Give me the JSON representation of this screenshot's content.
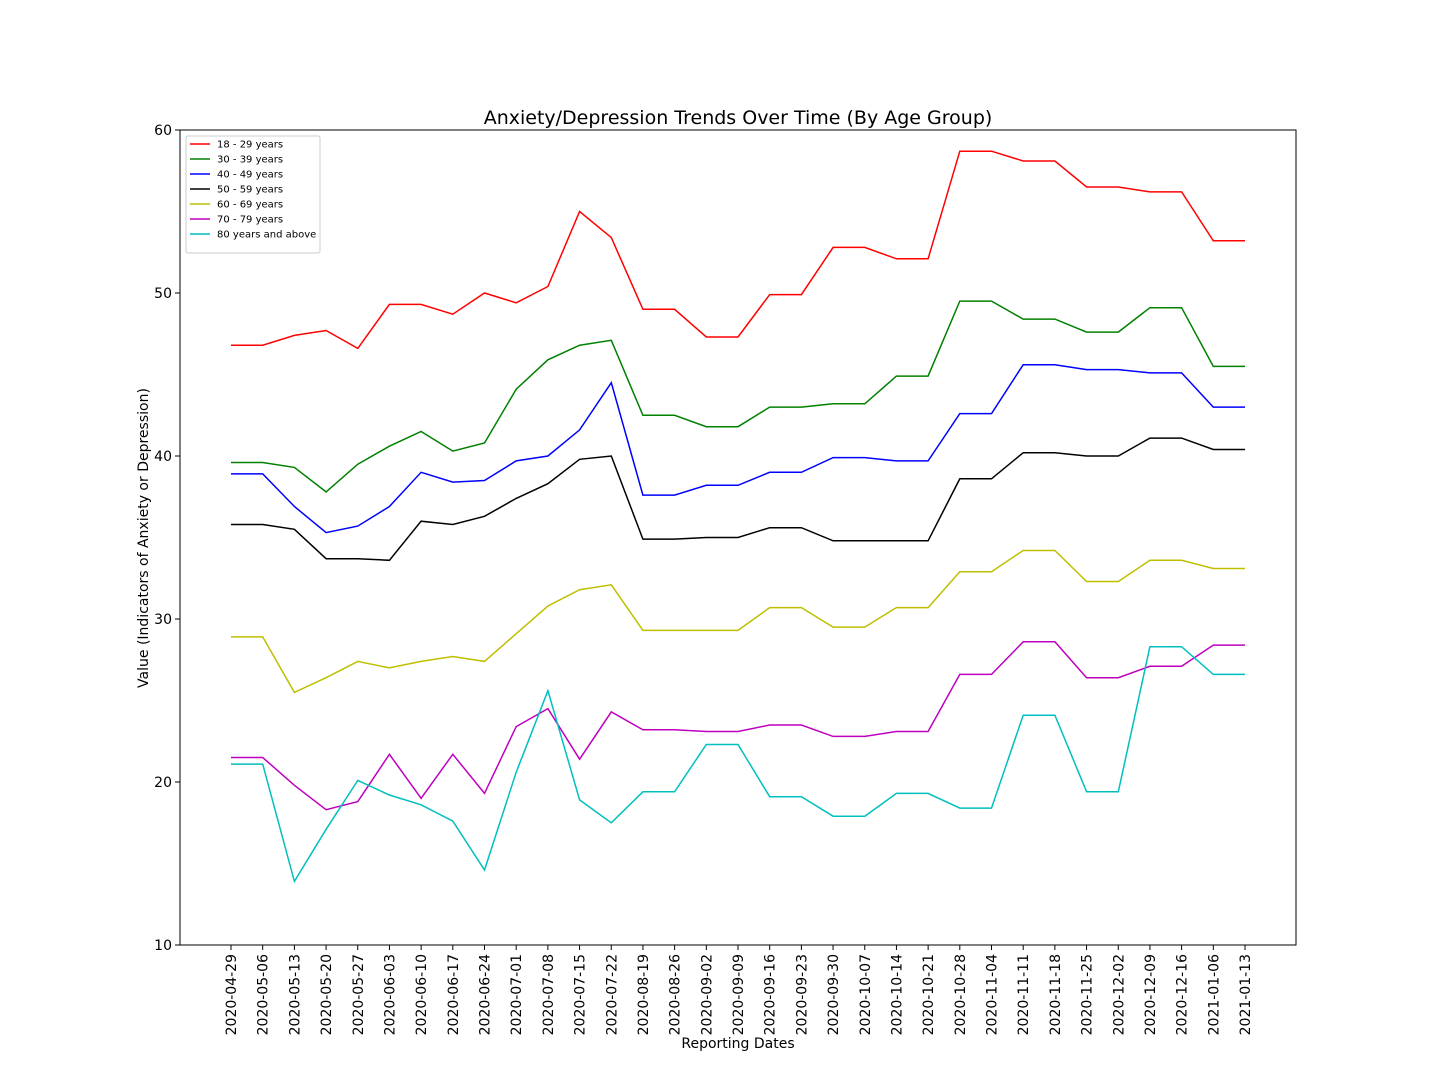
{
  "chart_data": {
    "type": "line",
    "title": "Anxiety/Depression Trends Over Time (By Age Group)",
    "xlabel": "Reporting Dates",
    "ylabel": "Value (Indicators of Anxiety or Depression)",
    "ylim": [
      10,
      60
    ],
    "yticks": [
      10,
      20,
      30,
      40,
      50,
      60
    ],
    "grid": false,
    "legend_position": "top-left",
    "categories": [
      "2020-04-29",
      "2020-05-06",
      "2020-05-13",
      "2020-05-20",
      "2020-05-27",
      "2020-06-03",
      "2020-06-10",
      "2020-06-17",
      "2020-06-24",
      "2020-07-01",
      "2020-07-08",
      "2020-07-15",
      "2020-07-22",
      "2020-08-19",
      "2020-08-26",
      "2020-09-02",
      "2020-09-09",
      "2020-09-16",
      "2020-09-23",
      "2020-09-30",
      "2020-10-07",
      "2020-10-14",
      "2020-10-21",
      "2020-10-28",
      "2020-11-04",
      "2020-11-11",
      "2020-11-18",
      "2020-11-25",
      "2020-12-02",
      "2020-12-09",
      "2020-12-16",
      "2021-01-06",
      "2021-01-13"
    ],
    "series": [
      {
        "name": "18 - 29 years",
        "color": "#ff0000",
        "values": [
          46.8,
          46.8,
          47.4,
          47.7,
          46.6,
          49.3,
          49.3,
          48.7,
          50.0,
          49.4,
          50.4,
          55.0,
          53.4,
          49.0,
          49.0,
          47.3,
          47.3,
          49.9,
          49.9,
          52.8,
          52.8,
          52.1,
          52.1,
          58.7,
          58.7,
          58.1,
          58.1,
          56.5,
          56.5,
          56.2,
          56.2,
          53.2,
          53.2
        ]
      },
      {
        "name": "30 - 39 years",
        "color": "#008000",
        "values": [
          39.6,
          39.6,
          39.3,
          37.8,
          39.5,
          40.6,
          41.5,
          40.3,
          40.8,
          44.1,
          45.9,
          46.8,
          47.1,
          42.5,
          42.5,
          41.8,
          41.8,
          43.0,
          43.0,
          43.2,
          43.2,
          44.9,
          44.9,
          49.5,
          49.5,
          48.4,
          48.4,
          47.6,
          47.6,
          49.1,
          49.1,
          45.5,
          45.5
        ]
      },
      {
        "name": "40 - 49 years",
        "color": "#0000ff",
        "values": [
          38.9,
          38.9,
          36.9,
          35.3,
          35.7,
          36.9,
          39.0,
          38.4,
          38.5,
          39.7,
          40.0,
          41.6,
          44.5,
          37.6,
          37.6,
          38.2,
          38.2,
          39.0,
          39.0,
          39.9,
          39.9,
          39.7,
          39.7,
          42.6,
          42.6,
          45.6,
          45.6,
          45.3,
          45.3,
          45.1,
          45.1,
          43.0,
          43.0
        ]
      },
      {
        "name": "50 - 59 years",
        "color": "#000000",
        "values": [
          35.8,
          35.8,
          35.5,
          33.7,
          33.7,
          33.6,
          36.0,
          35.8,
          36.3,
          37.4,
          38.3,
          39.8,
          40.0,
          34.9,
          34.9,
          35.0,
          35.0,
          35.6,
          35.6,
          34.8,
          34.8,
          34.8,
          34.8,
          38.6,
          38.6,
          40.2,
          40.2,
          40.0,
          40.0,
          41.1,
          41.1,
          40.4,
          40.4
        ]
      },
      {
        "name": "60 - 69 years",
        "color": "#bfbf00",
        "values": [
          28.9,
          28.9,
          25.5,
          26.4,
          27.4,
          27.0,
          27.4,
          27.7,
          27.4,
          29.1,
          30.8,
          31.8,
          32.1,
          29.3,
          29.3,
          29.3,
          29.3,
          30.7,
          30.7,
          29.5,
          29.5,
          30.7,
          30.7,
          32.9,
          32.9,
          34.2,
          34.2,
          32.3,
          32.3,
          33.6,
          33.6,
          33.1,
          33.1
        ]
      },
      {
        "name": "70 - 79 years",
        "color": "#bf00bf",
        "values": [
          21.5,
          21.5,
          19.8,
          18.3,
          18.8,
          21.7,
          19.0,
          21.7,
          19.3,
          23.4,
          24.5,
          21.4,
          24.3,
          23.2,
          23.2,
          23.1,
          23.1,
          23.5,
          23.5,
          22.8,
          22.8,
          23.1,
          23.1,
          26.6,
          26.6,
          28.6,
          28.6,
          26.4,
          26.4,
          27.1,
          27.1,
          28.4,
          28.4
        ]
      },
      {
        "name": "80 years and above",
        "color": "#00bfbf",
        "values": [
          21.1,
          21.1,
          13.9,
          17.1,
          20.1,
          19.2,
          18.6,
          17.6,
          14.6,
          20.6,
          25.6,
          18.9,
          17.5,
          19.4,
          19.4,
          22.3,
          22.3,
          19.1,
          19.1,
          17.9,
          17.9,
          19.3,
          19.3,
          18.4,
          18.4,
          24.1,
          24.1,
          19.4,
          19.4,
          28.3,
          28.3,
          26.6,
          26.6
        ]
      }
    ]
  }
}
